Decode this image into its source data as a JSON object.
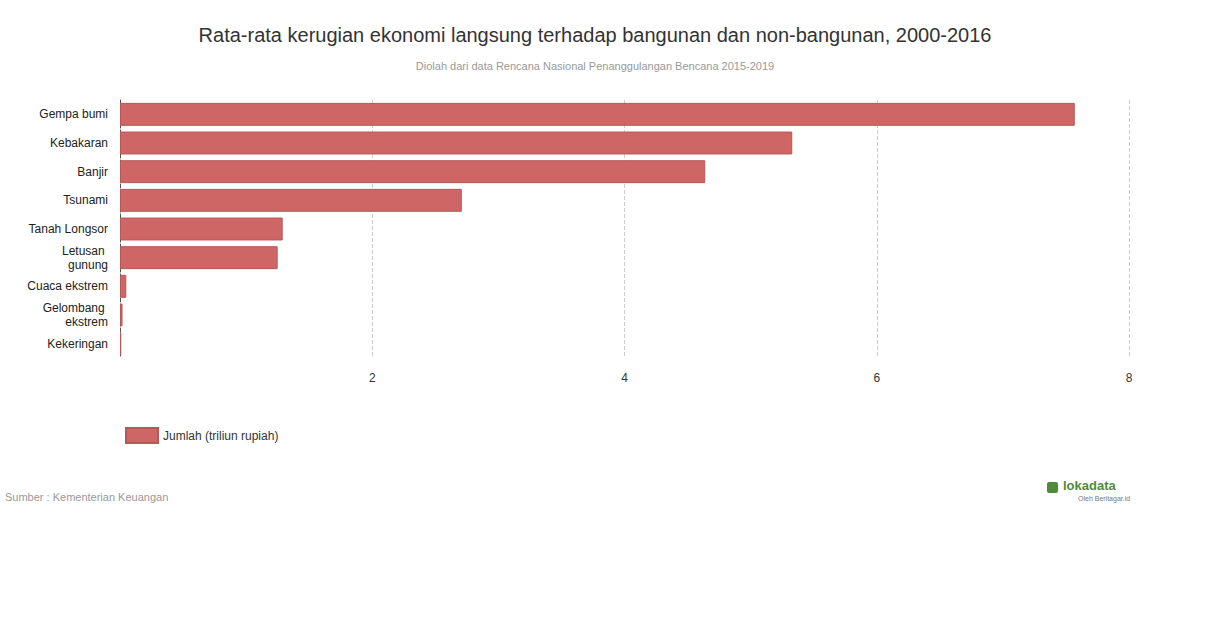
{
  "chart_data": {
    "type": "bar",
    "orientation": "horizontal",
    "title": "Rata-rata kerugian ekonomi langsung terhadap bangunan dan non-bangunan, 2000-2016",
    "subtitle": "Diolah dari data Rencana Nasional Penanggulangan Bencana 2015-2019",
    "source": "Sumber : Kementerian Keuangan",
    "annotations": [
      "lokadata",
      "Oleh Beritagar.id"
    ],
    "categories": [
      "Gempa bumi",
      "Kebakaran",
      "Banjir",
      "Tsunami",
      "Tanah Longsor",
      "Letusan gunung",
      "Cuaca ekstrem",
      "Gelombang ekstrem",
      "Kekeringan"
    ],
    "series": [
      {
        "name": "Jumlah (triliun rupiah)",
        "color": "#cd6664",
        "values": [
          7.57,
          5.33,
          4.64,
          2.71,
          1.29,
          1.25,
          0.05,
          0.02,
          0.01
        ]
      }
    ],
    "xlim": [
      0,
      8
    ],
    "xticks": [
      2,
      4,
      6,
      8
    ],
    "grid": true,
    "legend": "bottom-left"
  }
}
